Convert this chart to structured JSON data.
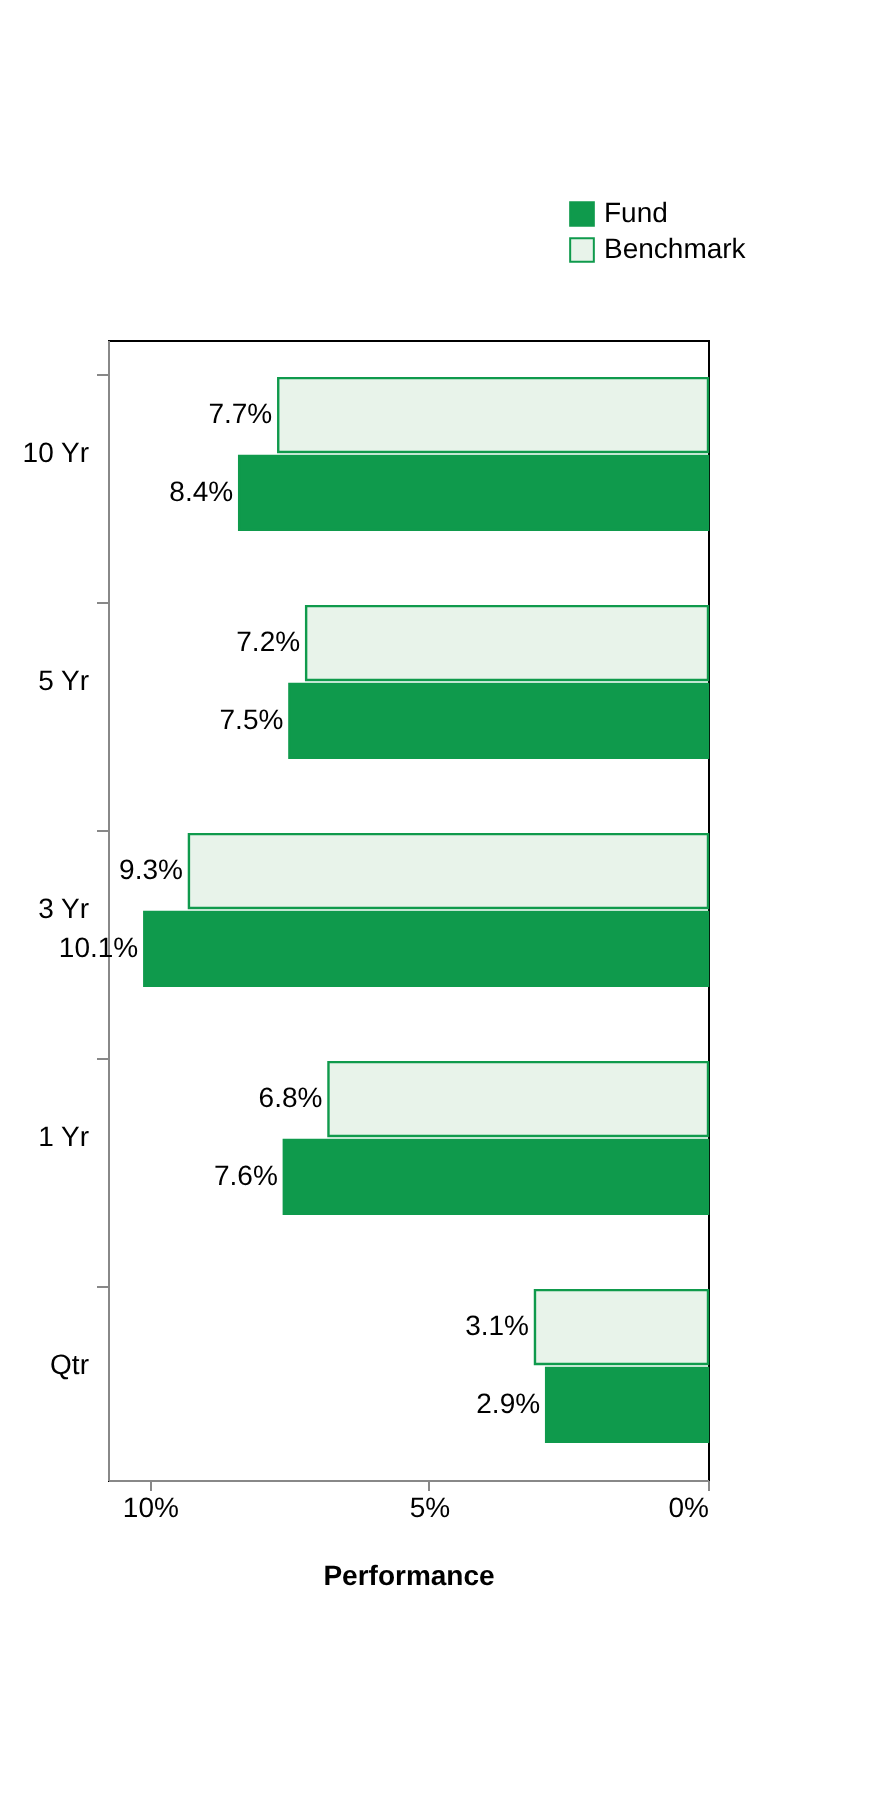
{
  "chart_data": {
    "type": "bar",
    "orientation": "horizontal",
    "xlabel": "Performance",
    "categories": [
      "10 Yr",
      "5 Yr",
      "3 Yr",
      "1 Yr",
      "Qtr"
    ],
    "series": [
      {
        "name": "Fund",
        "color": "#0f9a4c",
        "values": [
          8.4,
          7.5,
          10.1,
          7.6,
          2.9
        ],
        "value_labels": [
          "8.4%",
          "7.5%",
          "10.1%",
          "7.6%",
          "2.9%"
        ]
      },
      {
        "name": "Benchmark",
        "color": "#e8f3ea",
        "values": [
          7.7,
          7.2,
          9.3,
          6.8,
          3.1
        ],
        "value_labels": [
          "7.7%",
          "7.2%",
          "9.3%",
          "6.8%",
          "3.1%"
        ]
      }
    ],
    "xlim": [
      10.75,
      0
    ],
    "xticks": [
      {
        "value": 0,
        "label": "0%"
      },
      {
        "value": 5,
        "label": "5%"
      },
      {
        "value": 10,
        "label": "10%"
      }
    ],
    "grid": false,
    "legend": "top right"
  }
}
